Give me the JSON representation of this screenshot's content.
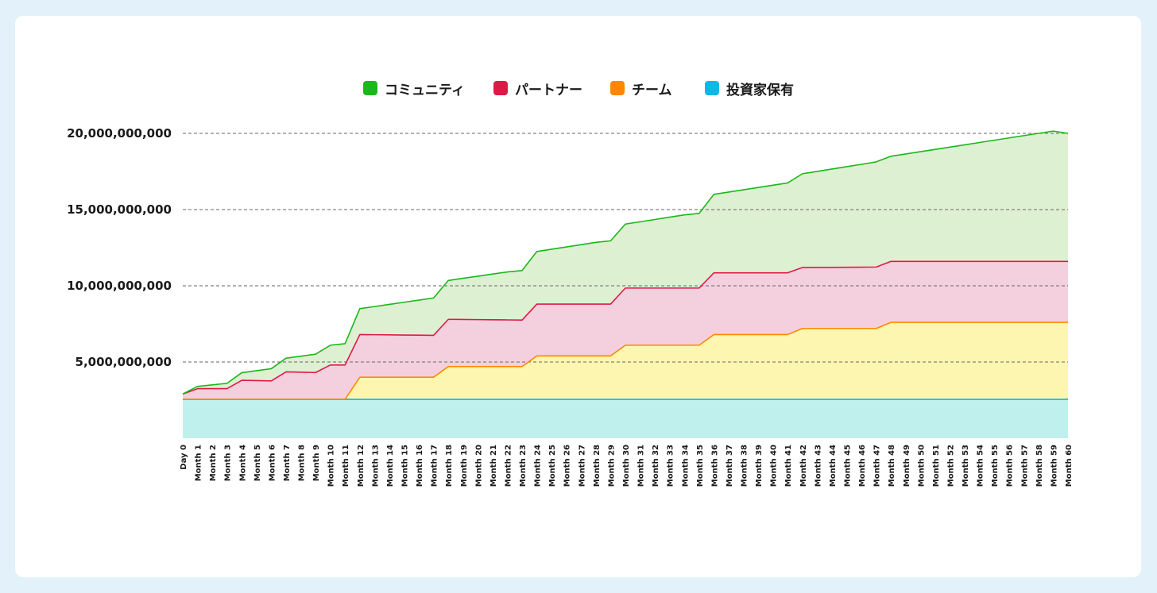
{
  "chart_data": {
    "type": "area",
    "stacked": true,
    "title": "",
    "xlabel": "",
    "ylabel": "",
    "ylim": [
      0,
      20000000000
    ],
    "yticks": [
      5000000000,
      10000000000,
      15000000000,
      20000000000
    ],
    "ytick_labels": [
      "5,000,000,000",
      "10,000,000,000",
      "15,000,000,000",
      "20,000,000,000"
    ],
    "grid": "horizontal-dashed",
    "legend_position": "top-center",
    "categories": [
      "Day 0",
      "Month 1",
      "Month 2",
      "Month 3",
      "Month 4",
      "Month 5",
      "Month 6",
      "Month 7",
      "Month 8",
      "Month 9",
      "Month 10",
      "Month 11",
      "Month 12",
      "Month 13",
      "Month 14",
      "Month 15",
      "Month 16",
      "Month 17",
      "Month 18",
      "Month 19",
      "Month 20",
      "Month 21",
      "Month 22",
      "Month 23",
      "Month 24",
      "Month 25",
      "Month 26",
      "Month 27",
      "Month 28",
      "Month 29",
      "Month 30",
      "Month 31",
      "Month 32",
      "Month 33",
      "Month 34",
      "Month 35",
      "Month 36",
      "Month 37",
      "Month 38",
      "Month 39",
      "Month 40",
      "Month 41",
      "Month 42",
      "Month 43",
      "Month 44",
      "Month 45",
      "Month 46",
      "Month 47",
      "Month 48",
      "Month 49",
      "Month 50",
      "Month 51",
      "Month 52",
      "Month 53",
      "Month 54",
      "Month 55",
      "Month 56",
      "Month 57",
      "Month 58",
      "Month 59",
      "Month 60"
    ],
    "series": [
      {
        "name": "投資家保有",
        "color": "#0bb8e6",
        "fill": "#c0f0ee",
        "values": [
          2550000000,
          2550000000,
          2550000000,
          2550000000,
          2550000000,
          2550000000,
          2550000000,
          2550000000,
          2550000000,
          2550000000,
          2550000000,
          2550000000,
          2550000000,
          2550000000,
          2550000000,
          2550000000,
          2550000000,
          2550000000,
          2550000000,
          2550000000,
          2550000000,
          2550000000,
          2550000000,
          2550000000,
          2550000000,
          2550000000,
          2550000000,
          2550000000,
          2550000000,
          2550000000,
          2550000000,
          2550000000,
          2550000000,
          2550000000,
          2550000000,
          2550000000,
          2550000000,
          2550000000,
          2550000000,
          2550000000,
          2550000000,
          2550000000,
          2550000000,
          2550000000,
          2550000000,
          2550000000,
          2550000000,
          2550000000,
          2550000000,
          2550000000,
          2550000000,
          2550000000,
          2550000000,
          2550000000,
          2550000000,
          2550000000,
          2550000000,
          2550000000,
          2550000000,
          2550000000,
          2550000000
        ]
      },
      {
        "name": "チーム",
        "color": "#ff8800",
        "fill": "#fdf6b0",
        "values": [
          0,
          0,
          0,
          0,
          0,
          0,
          0,
          0,
          0,
          0,
          0,
          0,
          1450000000,
          1450000000,
          1450000000,
          1450000000,
          1450000000,
          1450000000,
          2150000000,
          2150000000,
          2150000000,
          2150000000,
          2150000000,
          2150000000,
          2850000000,
          2850000000,
          2850000000,
          2850000000,
          2850000000,
          2850000000,
          3550000000,
          3550000000,
          3550000000,
          3550000000,
          3550000000,
          3550000000,
          4250000000,
          4250000000,
          4250000000,
          4250000000,
          4250000000,
          4250000000,
          4650000000,
          4650000000,
          4650000000,
          4650000000,
          4650000000,
          4650000000,
          5050000000,
          5050000000,
          5050000000,
          5050000000,
          5050000000,
          5050000000,
          5050000000,
          5050000000,
          5050000000,
          5050000000,
          5050000000,
          5050000000,
          5050000000
        ]
      },
      {
        "name": "パートナー",
        "color": "#dd1a45",
        "fill": "#f4d0df",
        "values": [
          350000000,
          700000000,
          700000000,
          700000000,
          1250000000,
          1230000000,
          1210000000,
          1800000000,
          1780000000,
          1760000000,
          2250000000,
          2250000000,
          2800000000,
          2790000000,
          2780000000,
          2770000000,
          2760000000,
          2750000000,
          3100000000,
          3090000000,
          3080000000,
          3070000000,
          3060000000,
          3050000000,
          3400000000,
          3400000000,
          3400000000,
          3400000000,
          3400000000,
          3400000000,
          3750000000,
          3750000000,
          3750000000,
          3750000000,
          3750000000,
          3750000000,
          4050000000,
          4050000000,
          4050000000,
          4050000000,
          4050000000,
          4050000000,
          4000000000,
          4005000000,
          4010000000,
          4015000000,
          4020000000,
          4030000000,
          4000000000,
          4000000000,
          4000000000,
          4000000000,
          4000000000,
          4000000000,
          4000000000,
          4000000000,
          4000000000,
          4000000000,
          4000000000,
          4000000000,
          4000000000
        ]
      },
      {
        "name": "コミュニティ",
        "color": "#1ab81a",
        "fill": "#def0d2",
        "values": [
          0,
          150000000,
          250000000,
          350000000,
          500000000,
          650000000,
          800000000,
          900000000,
          1050000000,
          1200000000,
          1300000000,
          1400000000,
          1700000000,
          1850000000,
          2000000000,
          2150000000,
          2300000000,
          2450000000,
          2550000000,
          2700000000,
          2850000000,
          3000000000,
          3150000000,
          3250000000,
          3450000000,
          3600000000,
          3750000000,
          3900000000,
          4050000000,
          4150000000,
          4200000000,
          4350000000,
          4500000000,
          4650000000,
          4800000000,
          4900000000,
          5150000000,
          5300000000,
          5450000000,
          5600000000,
          5750000000,
          5900000000,
          6150000000,
          6300000000,
          6450000000,
          6600000000,
          6750000000,
          6900000000,
          6900000000,
          7050000000,
          7200000000,
          7350000000,
          7500000000,
          7650000000,
          7800000000,
          7950000000,
          8100000000,
          8250000000,
          8400000000,
          8550000000,
          8400000000
        ]
      }
    ]
  },
  "legend": [
    {
      "label": "コミュニティ",
      "color": "#1ab81a"
    },
    {
      "label": "パートナー",
      "color": "#dd1a45"
    },
    {
      "label": "チーム",
      "color": "#ff8800"
    },
    {
      "label": "投資家保有",
      "color": "#0bb8e6"
    }
  ]
}
